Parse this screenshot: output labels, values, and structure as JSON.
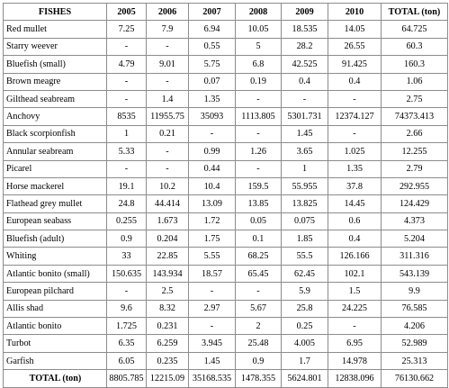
{
  "headers": [
    "FISHES",
    "2005",
    "2006",
    "2007",
    "2008",
    "2009",
    "2010",
    "TOTAL (ton)"
  ],
  "rows": [
    [
      "Red mullet",
      "7.25",
      "7.9",
      "6.94",
      "10.05",
      "18.535",
      "14.05",
      "64.725"
    ],
    [
      "Starry weever",
      "-",
      "-",
      "0.55",
      "5",
      "28.2",
      "26.55",
      "60.3"
    ],
    [
      "Bluefish (small)",
      "4.79",
      "9.01",
      "5.75",
      "6.8",
      "42.525",
      "91.425",
      "160.3"
    ],
    [
      "Brown meagre",
      "-",
      "-",
      "0.07",
      "0.19",
      "0.4",
      "0.4",
      "1.06"
    ],
    [
      "Gilthead seabream",
      "-",
      "1.4",
      "1.35",
      "-",
      "-",
      "-",
      "2.75"
    ],
    [
      "Anchovy",
      "8535",
      "11955.75",
      "35093",
      "1113.805",
      "5301.731",
      "12374.127",
      "74373.413"
    ],
    [
      "Black scorpionfish",
      "1",
      "0.21",
      "-",
      "-",
      "1.45",
      "-",
      "2.66"
    ],
    [
      "Annular seabream",
      "5.33",
      "-",
      "0.99",
      "1.26",
      "3.65",
      "1.025",
      "12.255"
    ],
    [
      "Picarel",
      "-",
      "-",
      "0.44",
      "-",
      "1",
      "1.35",
      "2.79"
    ],
    [
      "Horse mackerel",
      "19.1",
      "10.2",
      "10.4",
      "159.5",
      "55.955",
      "37.8",
      "292.955"
    ],
    [
      "Flathead grey mullet",
      "24.8",
      "44.414",
      "13.09",
      "13.85",
      "13.825",
      "14.45",
      "124.429"
    ],
    [
      "European seabass",
      "0.255",
      "1.673",
      "1.72",
      "0.05",
      "0.075",
      "0.6",
      "4.373"
    ],
    [
      "Bluefish (adult)",
      "0.9",
      "0.204",
      "1.75",
      "0.1",
      "1.85",
      "0.4",
      "5.204"
    ],
    [
      "Whiting",
      "33",
      "22.85",
      "5.55",
      "68.25",
      "55.5",
      "126.166",
      "311.316"
    ],
    [
      "Atlantic bonito (small)",
      "150.635",
      "143.934",
      "18.57",
      "65.45",
      "62.45",
      "102.1",
      "543.139"
    ],
    [
      "European pilchard",
      "-",
      "2.5",
      "-",
      "-",
      "5.9",
      "1.5",
      "9.9"
    ],
    [
      "Allis shad",
      "9.6",
      "8.32",
      "2.97",
      "5.67",
      "25.8",
      "24.225",
      "76.585"
    ],
    [
      "Atlantic bonito",
      "1.725",
      "0.231",
      "-",
      "2",
      "0.25",
      "-",
      "4.206"
    ],
    [
      "Turbot",
      "6.35",
      "6.259",
      "3.945",
      "25.48",
      "4.005",
      "6.95",
      "52.989"
    ],
    [
      "Garfish",
      "6.05",
      "0.235",
      "1.45",
      "0.9",
      "1.7",
      "14.978",
      "25.313"
    ]
  ],
  "total_row": [
    "TOTAL (ton)",
    "8805.785",
    "12215.09",
    "35168.535",
    "1478.355",
    "5624.801",
    "12838.096",
    "76130.662"
  ]
}
